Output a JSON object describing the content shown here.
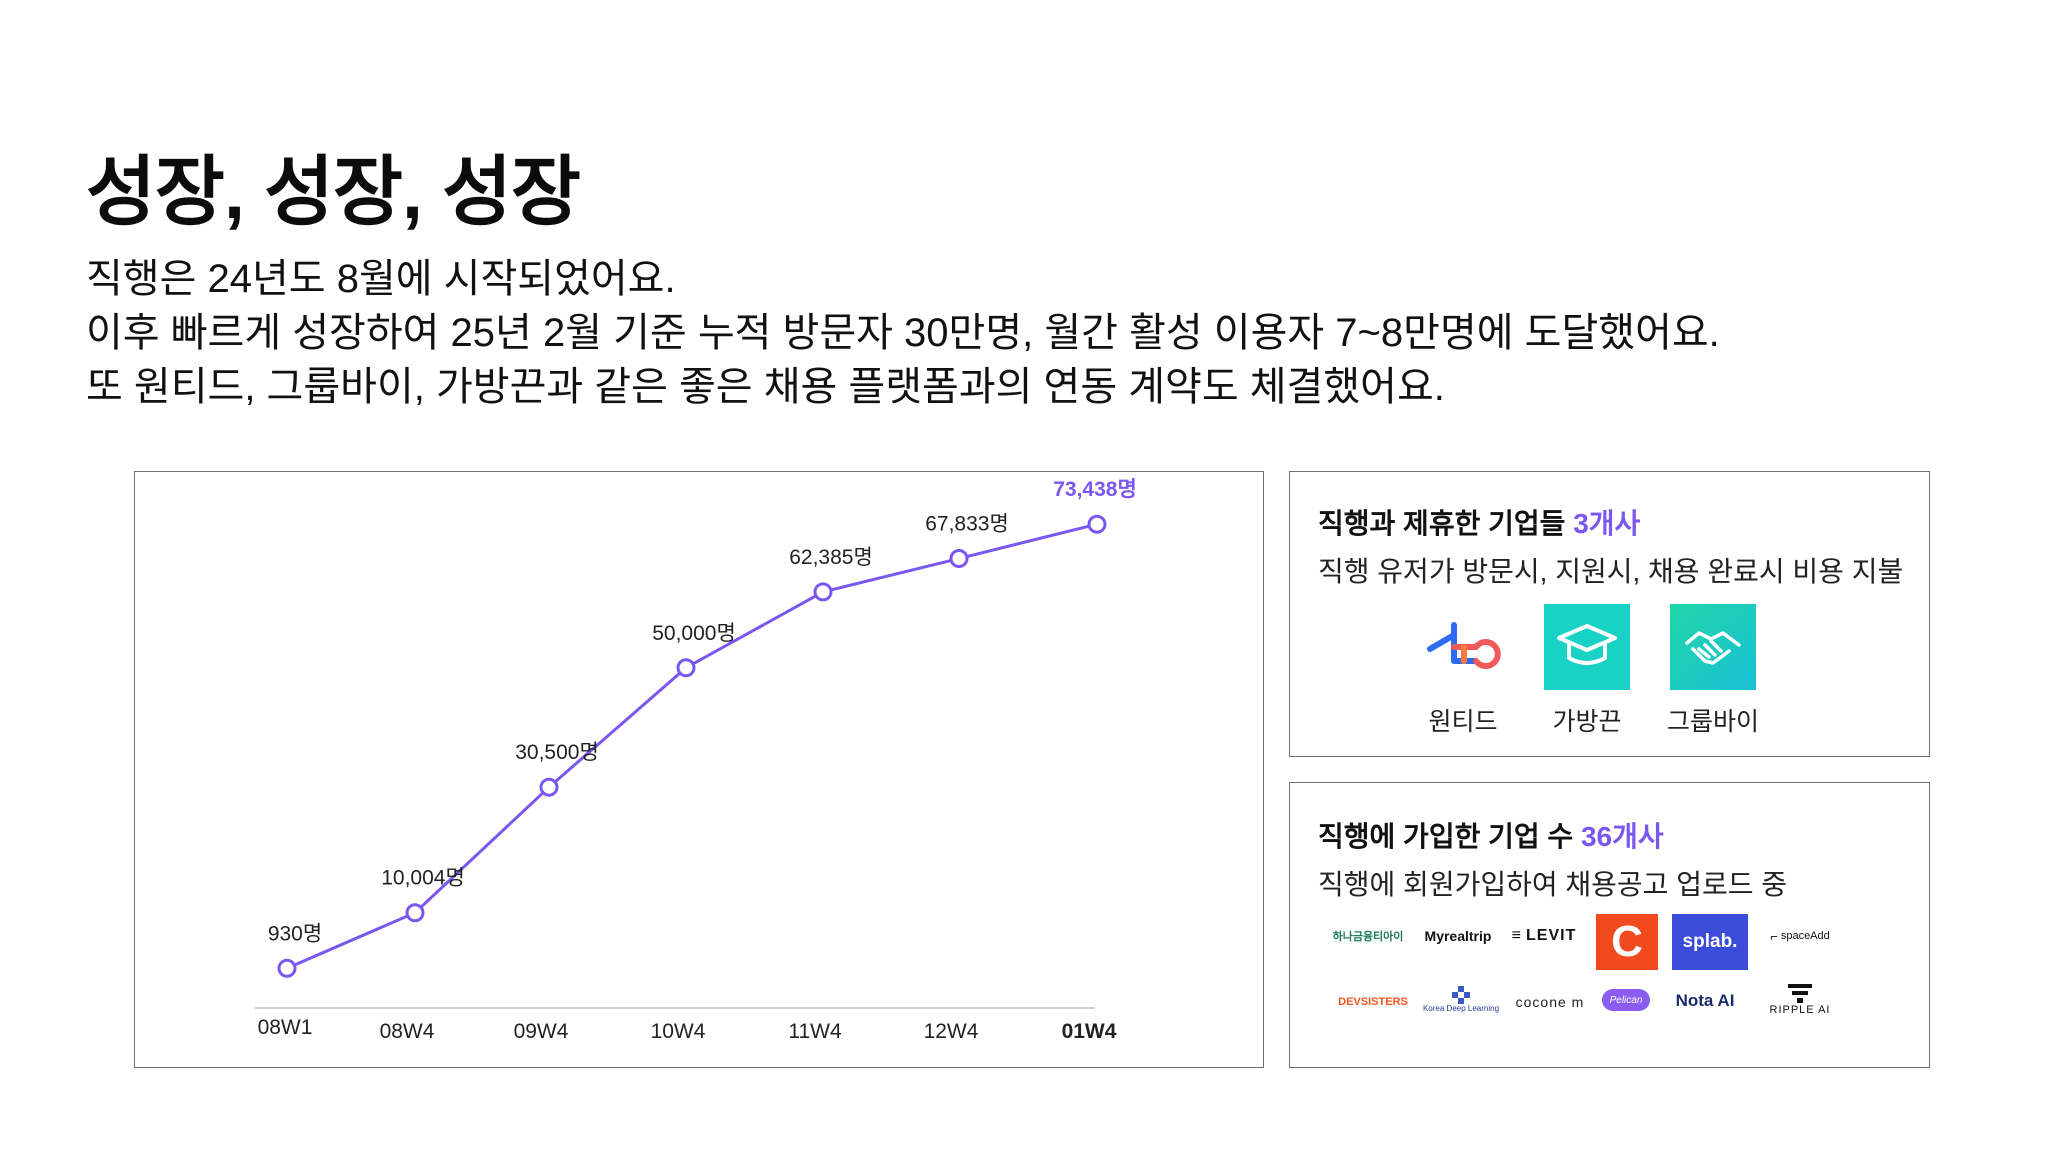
{
  "heading": "성장, 성장, 성장",
  "intro": [
    "직행은 24년도 8월에 시작되었어요.",
    "이후 빠르게 성장하여 25년 2월 기준 누적 방문자 30만명, 월간 활성 이용자 7~8만명에 도달했어요.",
    "또 원티드, 그룹바이, 가방끈과 같은 좋은 채용 플랫폼과의 연동 계약도 체결했어요."
  ],
  "chart_data": {
    "type": "line",
    "categories": [
      "08W1",
      "08W4",
      "09W4",
      "10W4",
      "11W4",
      "12W4",
      "01W4"
    ],
    "values": [
      930,
      10004,
      30500,
      50000,
      62385,
      67833,
      73438
    ],
    "data_labels": [
      "930명",
      "10,004명",
      "30,500명",
      "50,000명",
      "62,385명",
      "67,833명",
      "73,438명"
    ],
    "highlight_index": 6,
    "title": "",
    "xlabel": "",
    "ylabel": "",
    "ylim": [
      0,
      80000
    ],
    "grid": false,
    "colors": {
      "line": "#7b57f0",
      "highlight": "#7b57f0",
      "axis": "#cfcfcf"
    }
  },
  "partners": {
    "title_prefix": "직행과 제휴한 기업들 ",
    "title_highlight": "3개사",
    "subtitle": "직행 유저가 방문시, 지원시, 채용 완료시 비용 지불",
    "logos": [
      {
        "name": "원티드",
        "icon": "wanted-logo-icon"
      },
      {
        "name": "가방끈",
        "icon": "graduation-cap-icon"
      },
      {
        "name": "그룹바이",
        "icon": "handshake-icon"
      }
    ]
  },
  "members": {
    "title_prefix": "직행에 가입한 기업 수 ",
    "title_highlight": "36개사",
    "subtitle": "직행에 회원가입하여 채용공고 업로드 중",
    "logos": [
      "하나금융티아이",
      "Myrealtrip",
      "LEVIT",
      "C",
      "splab.",
      "spaceAdd",
      "DEVSISTERS",
      "Korea Deep Learning",
      "cocone m",
      "Pelican",
      "Nota AI",
      "RIPPLE AI"
    ]
  },
  "accent_color": "#7b57f0"
}
